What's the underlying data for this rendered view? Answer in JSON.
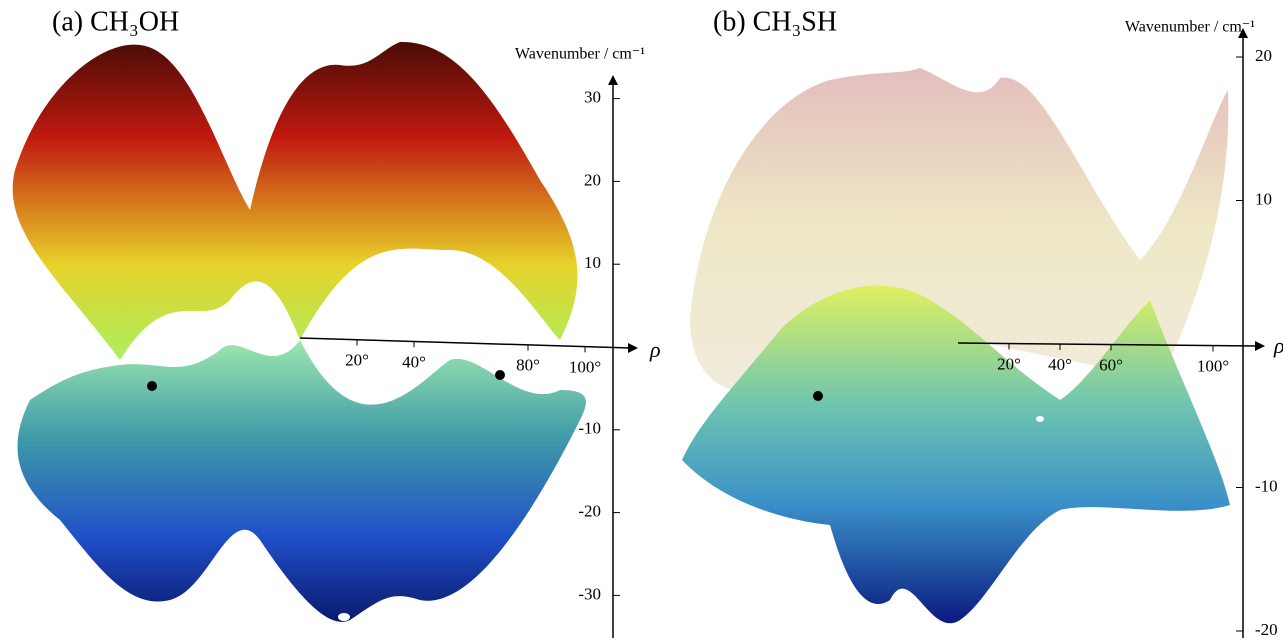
{
  "chart_data": [
    {
      "type": "surface3d",
      "title": "(a) CH₃OH",
      "y_label": "Wavenumber / cm⁻¹",
      "x_label": "ρ",
      "yticks": [
        30,
        20,
        10,
        -10,
        -20,
        -30
      ],
      "xticks": [
        {
          "value": 20,
          "label": "20°"
        },
        {
          "value": 40,
          "label": "40°"
        },
        {
          "value": 80,
          "label": "80°"
        },
        {
          "value": 100,
          "label": "100°"
        }
      ]
    },
    {
      "type": "surface3d",
      "title": "(b) CH₃SH",
      "y_label": "Wavenumber / cm⁻¹",
      "x_label": "ρ",
      "yticks": [
        20,
        10,
        -10,
        -20
      ],
      "xticks": [
        {
          "value": 20,
          "label": "20°"
        },
        {
          "value": 40,
          "label": "40°"
        },
        {
          "value": 60,
          "label": "60°"
        },
        {
          "value": 100,
          "label": "100°"
        }
      ]
    }
  ]
}
